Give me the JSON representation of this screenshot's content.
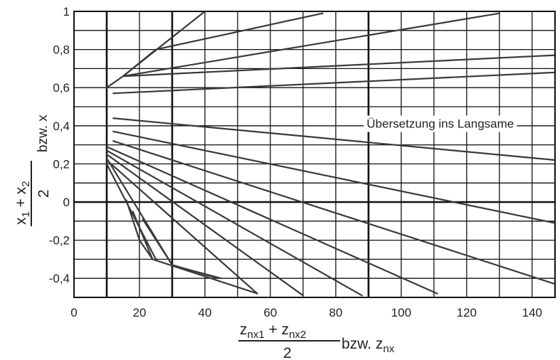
{
  "chart_data": {
    "type": "line",
    "xlim": [
      0,
      147
    ],
    "ylim": [
      -0.5,
      1.0
    ],
    "x_ticks": [
      {
        "value": 0,
        "label": "0"
      },
      {
        "value": 20,
        "label": "20"
      },
      {
        "value": 40,
        "label": "40"
      },
      {
        "value": 60,
        "label": "60"
      },
      {
        "value": 80,
        "label": "80"
      },
      {
        "value": 100,
        "label": "100"
      },
      {
        "value": 120,
        "label": "120"
      },
      {
        "value": 140,
        "label": "140"
      }
    ],
    "y_ticks": [
      {
        "value": 1.0,
        "label": "1"
      },
      {
        "value": 0.8,
        "label": "0,8"
      },
      {
        "value": 0.6,
        "label": "0,6"
      },
      {
        "value": 0.4,
        "label": "0,4"
      },
      {
        "value": 0.2,
        "label": "0,2"
      },
      {
        "value": 0.0,
        "label": "0"
      },
      {
        "value": -0.2,
        "label": "-0,2"
      },
      {
        "value": -0.4,
        "label": "-0,4"
      }
    ],
    "grid_x_minor_step": 10,
    "grid_y_minor_step": 0.1,
    "grid_x_major": [
      10,
      30,
      90
    ],
    "grid_y_major": [
      0.0
    ],
    "xlabel": {
      "num1": "z",
      "sub1": "nx1",
      "plus": " + ",
      "num2": "z",
      "sub2": "nx2",
      "den": "2",
      "suffix": " bzw. z",
      "sub3": "nx"
    },
    "ylabel": {
      "num1": "x",
      "sub1": "1",
      "plus": " + ",
      "num2": "x",
      "sub2": "2",
      "den": "2",
      "suffix": "bzw. x"
    },
    "annotation": {
      "text": "Übersetzung ins Langsame",
      "anchor": [
        89,
        0.39
      ]
    },
    "series": [
      {
        "x": [
          10,
          15,
          40
        ],
        "y": [
          0.6,
          0.66,
          1.0
        ]
      },
      {
        "x": [
          15,
          25,
          76
        ],
        "y": [
          0.66,
          0.8,
          0.99
        ]
      },
      {
        "x": [
          15,
          130
        ],
        "y": [
          0.66,
          0.99
        ]
      },
      {
        "x": [
          15,
          147
        ],
        "y": [
          0.66,
          0.77
        ]
      },
      {
        "x": [
          12,
          147
        ],
        "y": [
          0.57,
          0.68
        ]
      },
      {
        "x": [
          12,
          147
        ],
        "y": [
          0.44,
          0.22
        ]
      },
      {
        "x": [
          12,
          147
        ],
        "y": [
          0.37,
          -0.11
        ]
      },
      {
        "x": [
          12,
          147
        ],
        "y": [
          0.32,
          -0.43
        ]
      },
      {
        "x": [
          10,
          111
        ],
        "y": [
          0.29,
          -0.48
        ]
      },
      {
        "x": [
          10,
          88
        ],
        "y": [
          0.27,
          -0.49
        ]
      },
      {
        "x": [
          10,
          70
        ],
        "y": [
          0.25,
          -0.49
        ]
      },
      {
        "x": [
          10,
          56
        ],
        "y": [
          0.22,
          -0.48
        ]
      },
      {
        "x": [
          10,
          25
        ],
        "y": [
          0.2,
          -0.3
        ]
      },
      {
        "x": [
          10,
          30
        ],
        "y": [
          0.23,
          -0.33
        ]
      },
      {
        "x": [
          16,
          20,
          24,
          56
        ],
        "y": [
          0.01,
          -0.2,
          -0.3,
          -0.48
        ]
      },
      {
        "x": [
          18,
          24
        ],
        "y": [
          -0.05,
          -0.3
        ]
      },
      {
        "x": [
          21,
          30,
          34,
          45
        ],
        "y": [
          -0.09,
          -0.33,
          -0.35,
          -0.4
        ]
      },
      {
        "x": [
          30,
          44
        ],
        "y": [
          -0.33,
          -0.4
        ]
      }
    ]
  }
}
